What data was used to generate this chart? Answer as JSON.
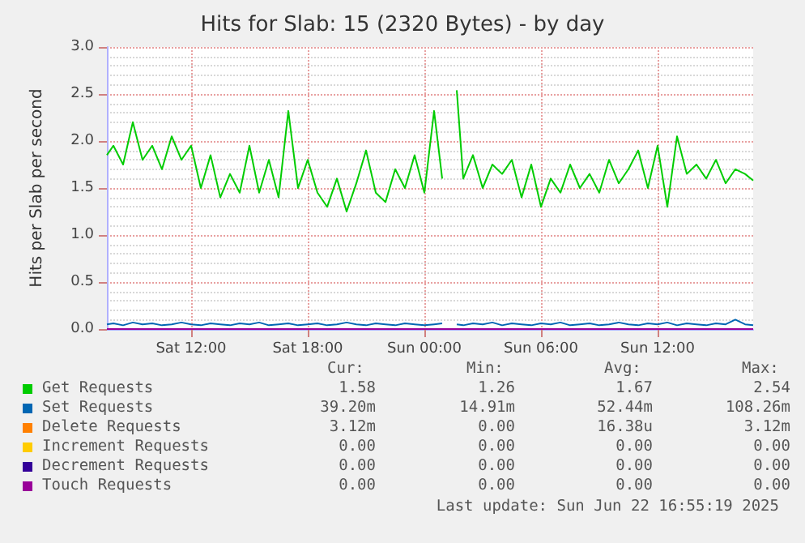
{
  "chart_data": {
    "type": "line",
    "title": "Hits for Slab: 15 (2320 Bytes) - by day",
    "ylabel": "Hits per Slab per second",
    "x": [
      "2025-06-21T07:40",
      "2025-06-21T08:00",
      "2025-06-21T08:30",
      "2025-06-21T09:00",
      "2025-06-21T09:30",
      "2025-06-21T10:00",
      "2025-06-21T10:30",
      "2025-06-21T11:00",
      "2025-06-21T11:30",
      "2025-06-21T12:00",
      "2025-06-21T12:30",
      "2025-06-21T13:00",
      "2025-06-21T13:30",
      "2025-06-21T14:00",
      "2025-06-21T14:30",
      "2025-06-21T15:00",
      "2025-06-21T15:30",
      "2025-06-21T16:00",
      "2025-06-21T16:30",
      "2025-06-21T17:00",
      "2025-06-21T17:30",
      "2025-06-21T18:00",
      "2025-06-21T18:30",
      "2025-06-21T19:00",
      "2025-06-21T19:30",
      "2025-06-21T20:00",
      "2025-06-21T20:30",
      "2025-06-21T21:00",
      "2025-06-21T21:30",
      "2025-06-21T22:00",
      "2025-06-21T22:30",
      "2025-06-21T23:00",
      "2025-06-21T23:30",
      "2025-06-22T00:00",
      "2025-06-22T00:30",
      "2025-06-22T00:55",
      "2025-06-22T01:20",
      "2025-06-22T01:40",
      "2025-06-22T02:00",
      "2025-06-22T02:30",
      "2025-06-22T03:00",
      "2025-06-22T03:30",
      "2025-06-22T04:00",
      "2025-06-22T04:30",
      "2025-06-22T05:00",
      "2025-06-22T05:30",
      "2025-06-22T06:00",
      "2025-06-22T06:30",
      "2025-06-22T07:00",
      "2025-06-22T07:30",
      "2025-06-22T08:00",
      "2025-06-22T08:30",
      "2025-06-22T09:00",
      "2025-06-22T09:30",
      "2025-06-22T10:00",
      "2025-06-22T10:30",
      "2025-06-22T11:00",
      "2025-06-22T11:30",
      "2025-06-22T12:00",
      "2025-06-22T12:30",
      "2025-06-22T13:00",
      "2025-06-22T13:30",
      "2025-06-22T14:00",
      "2025-06-22T14:30",
      "2025-06-22T15:00",
      "2025-06-22T15:30",
      "2025-06-22T16:00",
      "2025-06-22T16:30",
      "2025-06-22T16:55"
    ],
    "series": [
      {
        "name": "Get Requests",
        "color": "#00cc00",
        "values": [
          1.85,
          1.95,
          1.75,
          2.2,
          1.8,
          1.95,
          1.7,
          2.05,
          1.8,
          1.95,
          1.5,
          1.85,
          1.4,
          1.65,
          1.45,
          1.95,
          1.45,
          1.8,
          1.4,
          2.32,
          1.5,
          1.8,
          1.45,
          1.3,
          1.6,
          1.25,
          1.55,
          1.9,
          1.45,
          1.35,
          1.7,
          1.5,
          1.85,
          1.45,
          2.32,
          1.6,
          null,
          2.54,
          1.6,
          1.85,
          1.5,
          1.75,
          1.65,
          1.8,
          1.4,
          1.75,
          1.3,
          1.6,
          1.45,
          1.75,
          1.5,
          1.65,
          1.45,
          1.8,
          1.55,
          1.7,
          1.9,
          1.5,
          1.95,
          1.3,
          2.05,
          1.65,
          1.75,
          1.6,
          1.8,
          1.55,
          1.7,
          1.65,
          1.58
        ]
      },
      {
        "name": "Set Requests",
        "color": "#0066b3",
        "values": [
          0.05,
          0.06,
          0.04,
          0.07,
          0.05,
          0.06,
          0.04,
          0.05,
          0.07,
          0.05,
          0.04,
          0.06,
          0.05,
          0.04,
          0.06,
          0.05,
          0.07,
          0.04,
          0.05,
          0.06,
          0.04,
          0.05,
          0.06,
          0.04,
          0.05,
          0.07,
          0.05,
          0.04,
          0.06,
          0.05,
          0.04,
          0.06,
          0.05,
          0.04,
          0.05,
          0.06,
          null,
          0.05,
          0.04,
          0.06,
          0.05,
          0.07,
          0.04,
          0.06,
          0.05,
          0.04,
          0.06,
          0.05,
          0.07,
          0.04,
          0.05,
          0.06,
          0.04,
          0.05,
          0.07,
          0.05,
          0.04,
          0.06,
          0.05,
          0.07,
          0.04,
          0.06,
          0.05,
          0.04,
          0.06,
          0.05,
          0.1,
          0.05,
          0.04
        ]
      },
      {
        "name": "Delete Requests",
        "color": "#ff8000",
        "values": [
          null,
          null,
          null,
          null,
          null,
          null,
          null,
          null,
          null,
          null,
          null,
          null,
          null,
          null,
          null,
          null,
          null,
          null,
          null,
          null,
          null,
          null,
          null,
          null,
          null,
          null,
          null,
          null,
          null,
          null,
          null,
          null,
          null,
          null,
          null,
          null,
          null,
          null,
          null,
          null,
          null,
          null,
          null,
          null,
          null,
          null,
          null,
          null,
          null,
          null,
          null,
          null,
          null,
          null,
          null,
          null,
          null,
          null,
          null,
          null,
          null,
          null,
          null,
          null,
          null,
          null,
          null,
          null,
          null
        ]
      },
      {
        "name": "Increment Requests",
        "color": "#ffcc00",
        "values": [
          null,
          null,
          null,
          null,
          null,
          null,
          null,
          null,
          null,
          null,
          null,
          null,
          null,
          null,
          null,
          null,
          null,
          null,
          null,
          null,
          null,
          null,
          null,
          null,
          null,
          null,
          null,
          null,
          null,
          null,
          null,
          null,
          null,
          null,
          null,
          null,
          null,
          null,
          null,
          null,
          null,
          null,
          null,
          null,
          null,
          null,
          null,
          null,
          null,
          null,
          null,
          null,
          null,
          null,
          null,
          null,
          null,
          null,
          null,
          null,
          null,
          null,
          null,
          null,
          null,
          null,
          null,
          null,
          null
        ]
      },
      {
        "name": "Decrement Requests",
        "color": "#330099",
        "values": [
          null,
          null,
          null,
          null,
          null,
          null,
          null,
          null,
          null,
          null,
          null,
          null,
          null,
          null,
          null,
          null,
          null,
          null,
          null,
          null,
          null,
          null,
          null,
          null,
          null,
          null,
          null,
          null,
          null,
          null,
          null,
          null,
          null,
          null,
          null,
          null,
          null,
          null,
          null,
          null,
          null,
          null,
          null,
          null,
          null,
          null,
          null,
          null,
          null,
          null,
          null,
          null,
          null,
          null,
          null,
          null,
          null,
          null,
          null,
          null,
          null,
          null,
          null,
          null,
          null,
          null,
          null,
          null,
          null
        ]
      },
      {
        "name": "Touch Requests",
        "color": "#990099",
        "x": [
          "2025-06-21T07:40",
          "2025-06-22T16:55"
        ],
        "values": [
          0,
          0
        ]
      }
    ],
    "xlim": [
      "2025-06-21T07:40",
      "2025-06-22T16:55"
    ],
    "xticks": [
      {
        "value": "2025-06-21T12:00",
        "label": "Sat 12:00"
      },
      {
        "value": "2025-06-21T18:00",
        "label": "Sat 18:00"
      },
      {
        "value": "2025-06-22T00:00",
        "label": "Sun 00:00"
      },
      {
        "value": "2025-06-22T06:00",
        "label": "Sun 06:00"
      },
      {
        "value": "2025-06-22T12:00",
        "label": "Sun 12:00"
      }
    ],
    "ylim": [
      0,
      3
    ],
    "yticks": [
      {
        "value": 0,
        "label": "0.0"
      },
      {
        "value": 0.5,
        "label": "0.5"
      },
      {
        "value": 1,
        "label": "1.0"
      },
      {
        "value": 1.5,
        "label": "1.5"
      },
      {
        "value": 2,
        "label": "2.0"
      },
      {
        "value": 2.5,
        "label": "2.5"
      },
      {
        "value": 3,
        "label": "3.0"
      }
    ],
    "grid": true,
    "legend": "bottom",
    "marker": "none",
    "line_style": "solid",
    "annotations": [
      "Cur:",
      "Min:",
      "Avg:",
      "Max:",
      "1.58",
      "1.26",
      "1.67",
      "2.54",
      "39.20m",
      "14.91m",
      "52.44m",
      "108.26m",
      "3.12m",
      "0.00",
      "16.38u",
      "3.12m",
      "0.00",
      "0.00",
      "0.00",
      "0.00",
      "0.00",
      "0.00",
      "0.00",
      "0.00",
      "0.00",
      "0.00",
      "0.00",
      "0.00",
      "Last update: Sun Jun 22 16:55:19 2025"
    ]
  }
}
